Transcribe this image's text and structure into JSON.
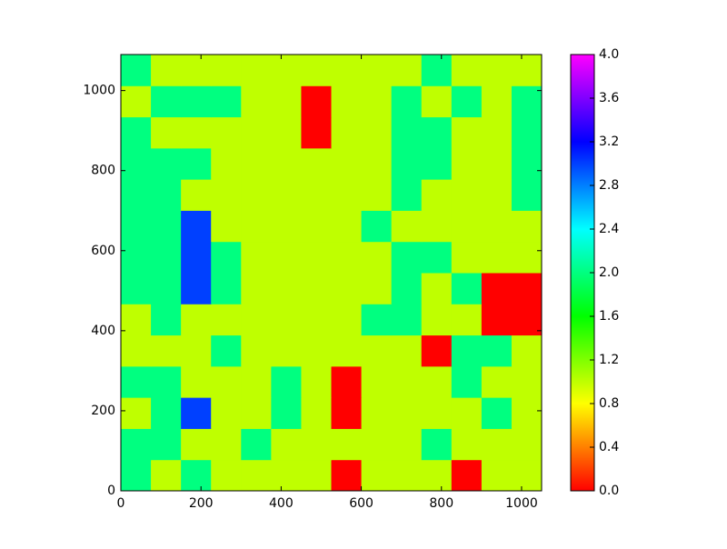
{
  "chart_data": {
    "type": "heatmap",
    "colormap": "hsv",
    "origin": "lower",
    "xlim": [
      0,
      1050
    ],
    "ylim": [
      0,
      1090
    ],
    "xticks": [
      0,
      200,
      400,
      600,
      800,
      1000
    ],
    "yticks": [
      0,
      200,
      400,
      600,
      800,
      1000
    ],
    "clim": [
      0,
      4
    ],
    "cticks": [
      {
        "value": 0,
        "label": "0.0"
      },
      {
        "value": 0.4,
        "label": "0.4"
      },
      {
        "value": 0.8,
        "label": "0.8"
      },
      {
        "value": 1.2,
        "label": "1.2"
      },
      {
        "value": 1.6,
        "label": "1.6"
      },
      {
        "value": 2.0,
        "label": "2.0"
      },
      {
        "value": 2.4,
        "label": "2.4"
      },
      {
        "value": 2.8,
        "label": "2.8"
      },
      {
        "value": 3.2,
        "label": "3.2"
      },
      {
        "value": 3.6,
        "label": "3.6"
      },
      {
        "value": 4.0,
        "label": "4.0"
      }
    ],
    "z": [
      [
        2,
        1,
        2,
        1,
        1,
        1,
        1,
        0,
        1,
        1,
        1,
        0,
        1,
        1
      ],
      [
        2,
        2,
        1,
        1,
        2,
        1,
        1,
        1,
        1,
        1,
        2,
        1,
        1,
        1
      ],
      [
        1,
        2,
        3,
        1,
        1,
        2,
        1,
        0,
        1,
        1,
        1,
        1,
        2,
        1
      ],
      [
        2,
        2,
        1,
        1,
        1,
        2,
        1,
        0,
        1,
        1,
        1,
        2,
        1,
        1
      ],
      [
        1,
        1,
        1,
        2,
        1,
        1,
        1,
        1,
        1,
        1,
        0,
        2,
        2,
        1
      ],
      [
        1,
        2,
        1,
        1,
        1,
        1,
        1,
        1,
        2,
        2,
        1,
        1,
        0,
        0
      ],
      [
        2,
        2,
        3,
        2,
        1,
        1,
        1,
        1,
        1,
        2,
        1,
        2,
        0,
        0
      ],
      [
        2,
        2,
        3,
        2,
        1,
        1,
        1,
        1,
        1,
        2,
        2,
        1,
        1,
        1
      ],
      [
        2,
        2,
        3,
        1,
        1,
        1,
        1,
        1,
        2,
        1,
        1,
        1,
        1,
        1
      ],
      [
        2,
        2,
        1,
        1,
        1,
        1,
        1,
        1,
        1,
        2,
        1,
        1,
        1,
        2
      ],
      [
        2,
        2,
        2,
        1,
        1,
        1,
        1,
        1,
        1,
        2,
        2,
        1,
        1,
        2
      ],
      [
        2,
        1,
        1,
        1,
        1,
        1,
        0,
        1,
        1,
        2,
        2,
        1,
        1,
        2
      ],
      [
        1,
        2,
        2,
        2,
        1,
        1,
        0,
        1,
        1,
        2,
        1,
        2,
        1,
        2
      ],
      [
        2,
        1,
        1,
        1,
        1,
        1,
        1,
        1,
        1,
        1,
        2,
        1,
        1,
        1
      ]
    ]
  }
}
